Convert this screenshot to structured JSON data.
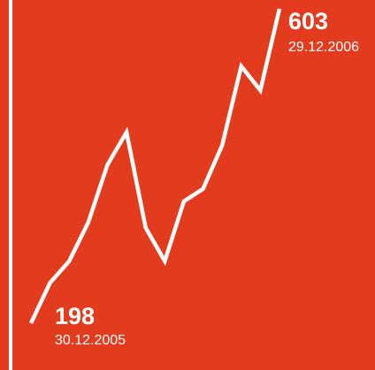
{
  "chart_data": {
    "type": "line",
    "categories": [
      "30.12.2005",
      null,
      null,
      null,
      null,
      null,
      null,
      null,
      null,
      null,
      null,
      null,
      null,
      "29.12.2006"
    ],
    "series": [
      {
        "color": "#ffffff",
        "values": [
          198,
          250,
          278,
          328,
          402,
          444,
          321,
          278,
          355,
          371,
          427,
          529,
          498,
          603
        ]
      }
    ]
  }
}
